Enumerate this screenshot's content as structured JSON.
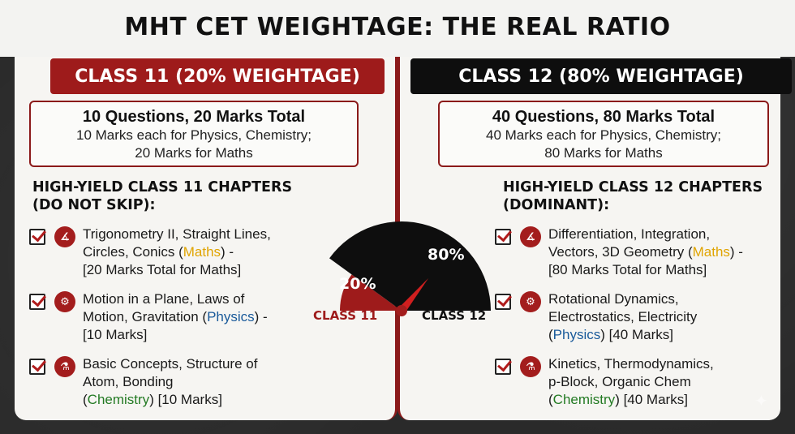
{
  "title": "MHT CET WEIGHTAGE: THE REAL RATIO",
  "colors": {
    "accent_red": "#9e1b1b",
    "dark": "#0e0e0e",
    "maths": "#e0a400",
    "physics": "#1a5a9a",
    "chemistry": "#237a23"
  },
  "class11": {
    "heading": "CLASS 11 (20% WEIGHTAGE)",
    "summary_head": "10 Questions, 20 Marks Total",
    "summary_line1": "10 Marks each for Physics, Chemistry;",
    "summary_line2": "20 Marks for Maths",
    "chapters_head1": "HIGH-YIELD CLASS 11 CHAPTERS",
    "chapters_head2": "(DO NOT SKIP):",
    "items": [
      {
        "icon": "math-graph-icon",
        "l1": "Trigonometry II, Straight Lines,",
        "l2a": "Circles, Conics (",
        "subject": "Maths",
        "l2b": ") -",
        "l3": "[20 Marks Total for Maths]"
      },
      {
        "icon": "atom-gear-icon",
        "l1": "Motion in a Plane, Laws of",
        "l2a": "Motion, Gravitation (",
        "subject": "Physics",
        "l2b": ") -",
        "l3": "[10 Marks]"
      },
      {
        "icon": "flask-icon",
        "l1": "Basic Concepts, Structure of",
        "l2a": "Atom, Bonding",
        "l3a": "(",
        "subject": "Chemistry",
        "l3b": ") [10 Marks]"
      }
    ]
  },
  "class12": {
    "heading": "CLASS 12 (80% WEIGHTAGE)",
    "summary_head": "40 Questions, 80 Marks Total",
    "summary_line1": "40 Marks each for Physics, Chemistry;",
    "summary_line2": "80 Marks for Maths",
    "chapters_head1": "HIGH-YIELD CLASS 12 CHAPTERS",
    "chapters_head2": "(DOMINANT):",
    "items": [
      {
        "icon": "math-graph-icon",
        "l1": "Differentiation, Integration,",
        "l2a": "Vectors, 3D Geometry (",
        "subject": "Maths",
        "l2b": ") -",
        "l3": "[80 Marks Total for Maths]"
      },
      {
        "icon": "atom-gear-icon",
        "l1": "Rotational Dynamics,",
        "l2a": "Electrostatics, Electricity",
        "l3a": "(",
        "subject": "Physics",
        "l3b": ") [40 Marks]"
      },
      {
        "icon": "flask-icon",
        "l1": "Kinetics, Thermodynamics,",
        "l2a": "p-Block, Organic Chem",
        "l3a": "(",
        "subject": "Chemistry",
        "l3b": ") [40 Marks]"
      }
    ]
  },
  "gauge": {
    "class11_value": 20,
    "class12_value": 80,
    "class11_pct": "20%",
    "class12_pct": "80%",
    "class11_label": "CLASS 11",
    "class12_label": "CLASS 12"
  }
}
